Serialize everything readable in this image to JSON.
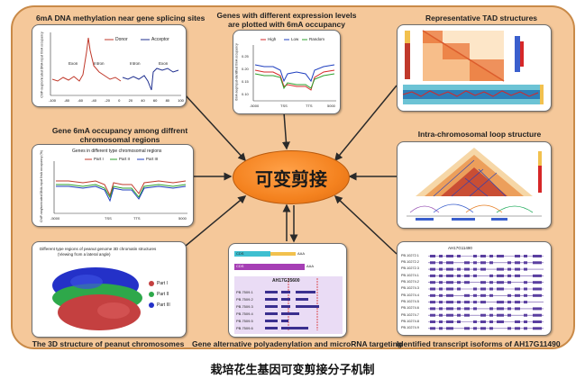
{
  "center_label": "可变剪接",
  "caption": "栽培花生基因可变剪接分子机制",
  "panels": {
    "dna_methylation": {
      "title": "6mA DNA methylation near gene splicing sites",
      "legend": [
        "Donor",
        "Acceptor"
      ],
      "labels": [
        "Exon",
        "Intron",
        "Intron",
        "Exon"
      ],
      "ylabel": "ChIP-seq/sonicated DNA-input 6mA occupancy",
      "xticks": [
        "-100",
        "-80",
        "-60",
        "-40",
        "-20",
        "0",
        "20",
        "40",
        "60",
        "80",
        "100"
      ]
    },
    "expression": {
      "title_lines": [
        "Genes with different expression levels",
        "are plotted with 6mA occupancy"
      ],
      "legend": [
        "High",
        "Low",
        "Random"
      ],
      "ylabel": "6mA-seq/input-identified 6mA occupancy",
      "yticks": [
        "0.25",
        "0.20",
        "0.15",
        "0.10"
      ],
      "xticks": [
        "-5000",
        "TSS",
        "TTS",
        "5000"
      ]
    },
    "tad": {
      "title": "Representative TAD structures"
    },
    "chromosomal_regions": {
      "title_lines": [
        "Gene 6mA occupancy among diffrent",
        "chromosomal regions"
      ],
      "inner_title": "Genes in different type chromosomal regions",
      "legend": [
        "Part I",
        "Part II",
        "Part III"
      ],
      "ylabel": "ChIP-seq/sonicated DNA-input 6mA occupancy (%)",
      "xticks": [
        "-5000",
        "TSS",
        "TTS",
        "5000"
      ]
    },
    "loop": {
      "title": "Intra-chromosomal loop structure"
    },
    "structure3d": {
      "inner_title": "Different type regions of peanut genome 3D chromatin structures",
      "inner_subtitle": "(Viewing from a lateral angle)",
      "legend": [
        "Part I",
        "Part II",
        "Part III"
      ],
      "title": "The 3D structure of peanut chromosomes"
    },
    "polyadenylation": {
      "title": "Gene alternative polyadenylation and microRNA targeting",
      "gene_label": "AH17G35600",
      "cds_label": "CDS",
      "tail_label": "AAA",
      "isoforms": [
        "PB.7509.1",
        "PB.7509.2",
        "PB.7509.3",
        "PB.7509.4",
        "PB.7509.5",
        "PB.7509.6"
      ]
    },
    "isoforms": {
      "title": "Identified transcript isoforms of AH17G11490",
      "gene_label": "AH17G11490",
      "rows": [
        "PB.10272.1",
        "PB.10272.2",
        "PB.10272.3",
        "PB.10274.1",
        "PB.10274.2",
        "PB.10274.3",
        "PB.10274.4",
        "PB.10274.5",
        "PB.10274.6",
        "PB.10274.7",
        "PB.10274.8",
        "PB.10274.9"
      ]
    }
  },
  "colors": {
    "frame": "#f5c89a",
    "center": "#f4821f",
    "arrow": "#2a2a2a",
    "donor": "#c0392b",
    "acceptor": "#1f2f8f",
    "high": "#d62728",
    "low": "#1f3fbf",
    "random": "#2ca02c"
  }
}
